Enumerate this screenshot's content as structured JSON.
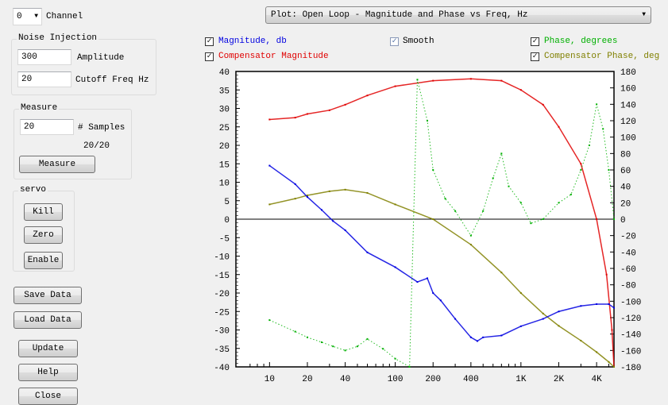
{
  "channel": {
    "value": "0",
    "label": "Channel"
  },
  "noise": {
    "title": "Noise Injection",
    "amplitude": "300",
    "amplitude_label": "Amplitude",
    "cutoff": "20",
    "cutoff_label": "Cutoff Freq Hz"
  },
  "measure": {
    "title": "Measure",
    "samples": "20",
    "samples_label": "# Samples",
    "progress": "20/20",
    "button": "Measure"
  },
  "servo": {
    "title": "servo",
    "kill": "Kill",
    "zero": "Zero",
    "enable": "Enable"
  },
  "buttons": {
    "save": "Save Data",
    "load": "Load Data",
    "update": "Update",
    "help": "Help",
    "close": "Close"
  },
  "plot_select": {
    "value": "Plot: Open Loop - Magnitude and Phase vs Freq, Hz"
  },
  "checks": {
    "magnitude": "Magnitude, db",
    "smooth": "Smooth",
    "phase": "Phase, degrees",
    "comp_mag": "Compensator Magnitude",
    "comp_phase": "Compensator Phase, deg"
  },
  "colors": {
    "magnitude": "#0000e0",
    "phase": "#00b000",
    "comp_mag": "#e00000",
    "comp_phase": "#808000"
  },
  "chart_data": {
    "type": "scatter",
    "xscale": "log",
    "xlim": [
      5.4,
      5500
    ],
    "ylim": [
      -40,
      40
    ],
    "y2lim": [
      -180,
      180
    ],
    "x_ticks": [
      "10",
      "20",
      "40",
      "100",
      "200",
      "400",
      "1K",
      "2K",
      "4K"
    ],
    "x_tick_values": [
      10,
      20,
      40,
      100,
      200,
      400,
      1000,
      2000,
      4000
    ],
    "y_ticks": [
      "40",
      "35",
      "30",
      "25",
      "20",
      "15",
      "10",
      "5",
      "0",
      "-5",
      "-10",
      "-15",
      "-20",
      "-25",
      "-30",
      "-35",
      "-40"
    ],
    "y2_ticks": [
      "180",
      "160",
      "140",
      "120",
      "100",
      "80",
      "60",
      "40",
      "20",
      "0",
      "-20",
      "-40",
      "-60",
      "-80",
      "-100",
      "-120",
      "-140",
      "-160",
      "-180"
    ],
    "series": [
      {
        "name": "Compensator Magnitude",
        "axis": "left",
        "color": "#e00000",
        "x": [
          10,
          16,
          20,
          30,
          40,
          60,
          100,
          200,
          400,
          700,
          1000,
          1500,
          2000,
          3000,
          4000,
          4800,
          5300,
          5500
        ],
        "y": [
          27,
          27.5,
          28.5,
          29.5,
          31,
          33.5,
          36,
          37.5,
          38,
          37.5,
          35,
          31,
          25,
          15,
          0,
          -15,
          -30,
          -40
        ]
      },
      {
        "name": "Compensator Phase, deg",
        "axis": "right",
        "color": "#808000",
        "x": [
          10,
          16,
          20,
          30,
          40,
          60,
          100,
          200,
          400,
          700,
          1000,
          1500,
          2000,
          3000,
          4000,
          5000,
          5500
        ],
        "y": [
          18,
          25,
          29,
          34,
          36,
          32,
          18,
          0,
          -31,
          -65,
          -90,
          -115,
          -130,
          -148,
          -162,
          -174,
          -180
        ]
      },
      {
        "name": "Magnitude, db",
        "axis": "left",
        "color": "#0000e0",
        "x": [
          10,
          16,
          20,
          26,
          32,
          40,
          60,
          100,
          150,
          180,
          200,
          230,
          300,
          400,
          450,
          500,
          700,
          1000,
          1500,
          2000,
          3000,
          4000,
          5000,
          5500
        ],
        "y": [
          14.5,
          9.5,
          6,
          2.5,
          -0.5,
          -3,
          -9,
          -13,
          -17,
          -16,
          -20,
          -22,
          -27,
          -32,
          -33,
          -32,
          -31.5,
          -29,
          -27,
          -25,
          -23.5,
          -23,
          -23,
          -24
        ]
      },
      {
        "name": "Phase, degrees",
        "axis": "right",
        "color": "#00b000",
        "x": [
          10,
          16,
          20,
          26,
          32,
          40,
          50,
          60,
          80,
          100,
          130,
          150,
          180,
          200,
          250,
          300,
          400,
          500,
          600,
          700,
          800,
          1000,
          1200,
          1500,
          2000,
          2500,
          3000,
          3500,
          4000,
          4500,
          5000,
          5500
        ],
        "y": [
          -123,
          -137,
          -144,
          -150,
          -155,
          -160,
          -155,
          -146,
          -158,
          -170,
          -180,
          170,
          120,
          60,
          25,
          10,
          -20,
          10,
          50,
          80,
          40,
          20,
          -5,
          0,
          20,
          30,
          60,
          90,
          140,
          110,
          60,
          0
        ]
      }
    ]
  }
}
